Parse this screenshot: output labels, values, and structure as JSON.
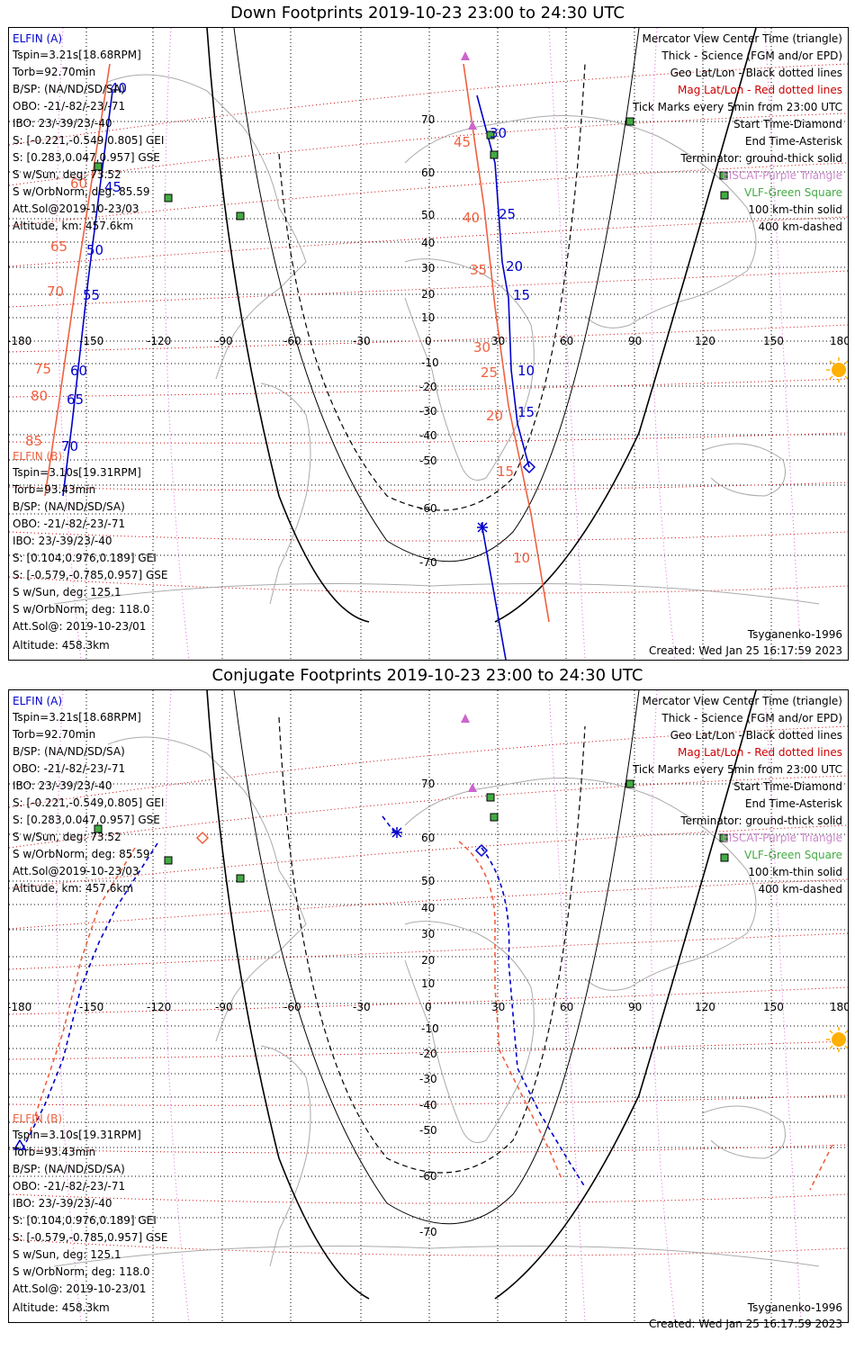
{
  "panels": [
    {
      "id": "down",
      "title": "Down Footprints 2019-10-23 23:00 to 24:30 UTC",
      "elfin_a": {
        "label": "ELFIN (A)",
        "lines": [
          "Tspin=3.21s[18.68RPM]",
          "Torb=92.70min",
          "B/SP: (NA/ND/SD/SA)",
          "OBO: -21/-82/-23/-71",
          "IBO: 23/-39/23/-40",
          "S: [-0.221,-0.549,0.805] GEI",
          "S: [0.283,0.047,0.957] GSE",
          "S w/Sun, deg: 73.52",
          "S w/OrbNorm, deg: 85.59",
          "Att.Sol@2019-10-23/03",
          "Altitude, km: 457.6km"
        ]
      },
      "elfin_b": {
        "label": "ELFIN (B)",
        "lines": [
          "Tspin=3.10s[19.31RPM]",
          "Torb=93.43min",
          "B/SP: (NA/ND/SD/SA)",
          "OBO: -21/-82/-23/-71",
          "IBO: 23/-39/23/-40",
          "S: [0.104,0.976,0.189] GEI",
          "S: [-0.579,-0.785,0.957] GSE",
          "S w/Sun, deg: 125.1",
          "S w/OrbNorm, deg: 118.0",
          "Att.Sol@: 2019-10-23/01",
          "Altitude: 458.3km"
        ]
      },
      "legend": [
        "Mercator View Center Time (triangle)",
        "Thick - Science (FGM and/or EPD)",
        "Geo Lat/Lon - Black dotted lines",
        "Mag Lat/Lon - Red dotted lines",
        "Tick Marks every 5min from 23:00 UTC",
        "Start Time-Diamond",
        "End Time-Asterisk",
        "Terminator: ground-thick solid",
        "EISCAT-Purple Triangle",
        "VLF-Green Square",
        "100 km-thin solid",
        "400 km-dashed"
      ],
      "model": "Tsyganenko-1996",
      "created": "Created: Wed Jan 25 16:17:59 2023",
      "track_a_labels": [
        "40",
        "45",
        "50",
        "55",
        "60",
        "65",
        "70",
        "30",
        "25",
        "20",
        "15",
        "10",
        "15"
      ],
      "track_b_labels": [
        "60",
        "65",
        "70",
        "75",
        "80",
        "85",
        "45",
        "40",
        "35",
        "30",
        "25",
        "20",
        "15",
        "10"
      ]
    },
    {
      "id": "conjugate",
      "title": "Conjugate Footprints 2019-10-23 23:00 to 24:30 UTC",
      "elfin_a": {
        "label": "ELFIN (A)",
        "lines": [
          "Tspin=3.21s[18.68RPM]",
          "Torb=92.70min",
          "B/SP: (NA/ND/SD/SA)",
          "OBO: -21/-82/-23/-71",
          "IBO: 23/-39/23/-40",
          "S: [-0.221,-0.549,0.805] GEI",
          "S: [0.283,0.047,0.957] GSE",
          "S w/Sun, deg: 73.52",
          "S w/OrbNorm, deg: 85.59",
          "Att.Sol@2019-10-23/03",
          "Altitude, km: 457.6km"
        ]
      },
      "elfin_b": {
        "label": "ELFIN (B)",
        "lines": [
          "Tspin=3.10s[19.31RPM]",
          "Torb=93.43min",
          "B/SP: (NA/ND/SD/SA)",
          "OBO: -21/-82/-23/-71",
          "IBO: 23/-39/23/-40",
          "S: [0.104,0.976,0.189] GEI",
          "S: [-0.579,-0.785,0.957] GSE",
          "S w/Sun, deg: 125.1",
          "S w/OrbNorm, deg: 118.0",
          "Att.Sol@: 2019-10-23/01",
          "Altitude: 458.3km"
        ]
      },
      "legend": [
        "Mercator View Center Time (triangle)",
        "Thick - Science (FGM and/or EPD)",
        "Geo Lat/Lon - Black dotted lines",
        "Mag Lat/Lon - Red dotted lines",
        "Tick Marks every 5min from 23:00 UTC",
        "Start Time-Diamond",
        "End Time-Asterisk",
        "Terminator: ground-thick solid",
        "EISCAT-Purple Triangle",
        "VLF-Green Square",
        "100 km-thin solid",
        "400 km-dashed"
      ],
      "model": "Tsyganenko-1996",
      "created": "Created: Wed Jan 25 16:17:59 2023"
    }
  ],
  "axis": {
    "lon_ticks": [
      "-180",
      "-150",
      "-120",
      "-90",
      "-60",
      "-30",
      "0",
      "30",
      "60",
      "90",
      "120",
      "150",
      "180"
    ],
    "lat_ticks": [
      "70",
      "60",
      "50",
      "40",
      "30",
      "20",
      "10",
      "0",
      "-10",
      "-20",
      "-30",
      "-40",
      "-50",
      "-60",
      "-70"
    ]
  },
  "colors": {
    "elfin_a": "#0000cc",
    "elfin_b": "#f06040",
    "mag_grid": "#cc0000",
    "geo_grid": "#000000",
    "eiscat": "#cc88cc",
    "vlf": "#44aa44",
    "sun": "#ffb000"
  }
}
